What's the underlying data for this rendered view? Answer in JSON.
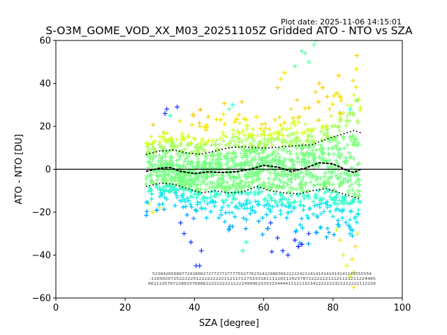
{
  "chart_data": {
    "type": "scatter",
    "plot_date": "Plot date: 2025-11-06 14:15:01",
    "title": "S-O3M_GOME_VOD_XX_M03_20251105Z Gridded ATO - NTO vs SZA",
    "xlabel": "SZA [degree]",
    "ylabel": "ATO - NTO [DU]",
    "xlim": [
      0,
      100
    ],
    "ylim": [
      -60,
      60
    ],
    "x_ticks": [
      "0",
      "20",
      "40",
      "60",
      "80",
      "100"
    ],
    "y_ticks": [
      "60",
      "40",
      "20",
      "0",
      "−20",
      "−40",
      "−60"
    ],
    "marker": "+",
    "colormap": "jet (point density)",
    "sza_range": [
      26,
      88
    ],
    "median_profile": [
      [
        26,
        -1
      ],
      [
        30,
        0.5
      ],
      [
        33,
        0.8
      ],
      [
        36,
        -1
      ],
      [
        40,
        -2
      ],
      [
        44,
        -1.2
      ],
      [
        48,
        -1.5
      ],
      [
        52,
        -1.2
      ],
      [
        56,
        0
      ],
      [
        60,
        1.8
      ],
      [
        64,
        1
      ],
      [
        68,
        -1
      ],
      [
        72,
        0.5
      ],
      [
        76,
        3
      ],
      [
        80,
        2.5
      ],
      [
        84,
        -0.5
      ],
      [
        86,
        -1.5
      ],
      [
        88,
        0
      ]
    ],
    "upper_band": [
      [
        26,
        7
      ],
      [
        30,
        8.5
      ],
      [
        34,
        9
      ],
      [
        38,
        7.5
      ],
      [
        42,
        7
      ],
      [
        46,
        8.5
      ],
      [
        50,
        10
      ],
      [
        54,
        10.5
      ],
      [
        58,
        10
      ],
      [
        62,
        10
      ],
      [
        66,
        10.5
      ],
      [
        70,
        11
      ],
      [
        74,
        11.5
      ],
      [
        78,
        14
      ],
      [
        82,
        16
      ],
      [
        86,
        18
      ],
      [
        88,
        17
      ]
    ],
    "lower_band": [
      [
        26,
        -8
      ],
      [
        30,
        -6.5
      ],
      [
        34,
        -7
      ],
      [
        38,
        -9
      ],
      [
        42,
        -11
      ],
      [
        46,
        -10
      ],
      [
        50,
        -11
      ],
      [
        54,
        -10.5
      ],
      [
        58,
        -8
      ],
      [
        62,
        -10
      ],
      [
        66,
        -11
      ],
      [
        70,
        -11.5
      ],
      [
        74,
        -10
      ],
      [
        78,
        -9
      ],
      [
        82,
        -11
      ],
      [
        86,
        -13
      ],
      [
        88,
        -14
      ]
    ],
    "zero_line": 0,
    "bin_counts_row1": "5238426568077292800272772772777755277623242298036622222421141414141414141145555554",
    "bin_counts_row2": "-11030207252222251222222222112117127333318111120211423787222222211121111211224485",
    "bin_counts_row3": "66211357672288337688822222222211222499962333333444411121132342222222321222222112220"
  }
}
